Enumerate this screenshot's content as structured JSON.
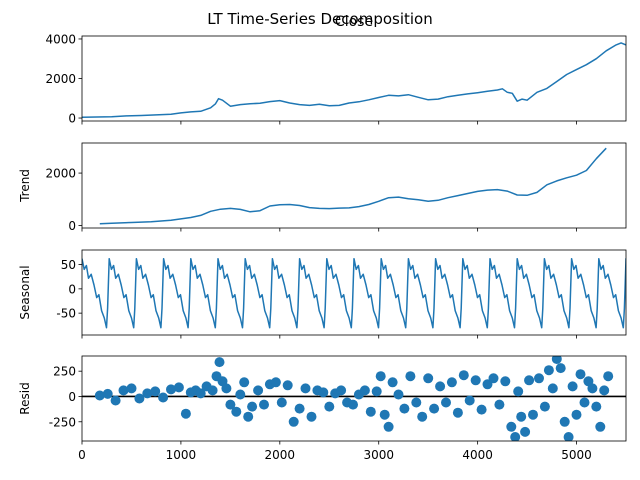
{
  "figure": {
    "title": "LT Time-Series Decomposition"
  },
  "chart_data": [
    {
      "type": "line",
      "title": "Close",
      "ylabel": "",
      "xlim": [
        0,
        5500
      ],
      "ylim": [
        -150,
        4150
      ],
      "yticks": [
        0,
        2000,
        4000
      ],
      "xticks": [
        0,
        1000,
        2000,
        3000,
        4000,
        5000
      ],
      "show_xtick_labels": false,
      "color": "#1f77b4",
      "series": [
        {
          "x": [
            0,
            150,
            300,
            450,
            600,
            750,
            900,
            1000,
            1100,
            1200,
            1300,
            1350,
            1380,
            1420,
            1500,
            1600,
            1700,
            1800,
            1900,
            2000,
            2100,
            2200,
            2300,
            2400,
            2500,
            2600,
            2700,
            2800,
            2900,
            3000,
            3100,
            3200,
            3300,
            3400,
            3500,
            3600,
            3700,
            3800,
            3900,
            4000,
            4100,
            4200,
            4250,
            4300,
            4350,
            4400,
            4450,
            4500,
            4600,
            4700,
            4800,
            4900,
            5000,
            5100,
            5200,
            5300,
            5400,
            5450,
            5500
          ],
          "y": [
            40,
            50,
            70,
            110,
            130,
            160,
            190,
            260,
            310,
            340,
            520,
            720,
            980,
            900,
            600,
            680,
            720,
            750,
            830,
            880,
            760,
            680,
            640,
            700,
            620,
            640,
            760,
            820,
            920,
            1040,
            1150,
            1120,
            1180,
            1050,
            920,
            960,
            1080,
            1150,
            1220,
            1280,
            1350,
            1420,
            1480,
            1300,
            1250,
            850,
            960,
            900,
            1300,
            1500,
            1850,
            2200,
            2450,
            2700,
            3000,
            3400,
            3700,
            3800,
            3700
          ]
        }
      ]
    },
    {
      "type": "line",
      "title": "",
      "ylabel": "Trend",
      "xlim": [
        0,
        5500
      ],
      "ylim": [
        -100,
        3150
      ],
      "yticks": [
        0,
        2000
      ],
      "xticks": [
        0,
        1000,
        2000,
        3000,
        4000,
        5000
      ],
      "show_xtick_labels": false,
      "color": "#1f77b4",
      "series": [
        {
          "x": [
            180,
            300,
            500,
            700,
            900,
            1100,
            1200,
            1300,
            1400,
            1500,
            1600,
            1700,
            1800,
            1900,
            2000,
            2100,
            2200,
            2300,
            2400,
            2500,
            2600,
            2700,
            2800,
            2900,
            3000,
            3100,
            3200,
            3300,
            3400,
            3500,
            3600,
            3700,
            3800,
            3900,
            4000,
            4100,
            4200,
            4300,
            4400,
            4500,
            4600,
            4700,
            4800,
            4900,
            5000,
            5100,
            5200,
            5300
          ],
          "y": [
            60,
            80,
            110,
            140,
            200,
            300,
            380,
            540,
            620,
            650,
            610,
            520,
            560,
            740,
            790,
            800,
            760,
            680,
            650,
            640,
            660,
            670,
            720,
            800,
            920,
            1060,
            1080,
            1020,
            980,
            920,
            960,
            1060,
            1140,
            1220,
            1300,
            1350,
            1370,
            1310,
            1160,
            1150,
            1260,
            1550,
            1700,
            1820,
            1920,
            2100,
            2550,
            2950
          ]
        }
      ]
    },
    {
      "type": "line",
      "title": "",
      "ylabel": "Seasonal",
      "xlim": [
        0,
        5500
      ],
      "ylim": [
        -95,
        80
      ],
      "yticks": [
        -50,
        0,
        50
      ],
      "xticks": [
        0,
        1000,
        2000,
        3000,
        4000,
        5000
      ],
      "show_xtick_labels": false,
      "color": "#1f77b4",
      "period": 275,
      "pattern": [
        {
          "t": 0.0,
          "v": 62
        },
        {
          "t": 0.08,
          "v": 40
        },
        {
          "t": 0.16,
          "v": 48
        },
        {
          "t": 0.24,
          "v": 22
        },
        {
          "t": 0.34,
          "v": 30
        },
        {
          "t": 0.44,
          "v": 8
        },
        {
          "t": 0.54,
          "v": -18
        },
        {
          "t": 0.62,
          "v": -12
        },
        {
          "t": 0.72,
          "v": -45
        },
        {
          "t": 0.82,
          "v": -60
        },
        {
          "t": 0.9,
          "v": -80
        },
        {
          "t": 0.94,
          "v": -40
        },
        {
          "t": 1.0,
          "v": 62
        }
      ]
    },
    {
      "type": "scatter",
      "title": "",
      "ylabel": "Resid",
      "xlim": [
        0,
        5500
      ],
      "ylim": [
        -440,
        400
      ],
      "yticks": [
        -250,
        0,
        250
      ],
      "xticks": [
        0,
        1000,
        2000,
        3000,
        4000,
        5000
      ],
      "xtick_labels": [
        "0",
        "1000",
        "2000",
        "3000",
        "4000",
        "5000"
      ],
      "show_xtick_labels": true,
      "baseline": 0,
      "color": "#1f77b4",
      "x": [
        180,
        260,
        340,
        420,
        500,
        580,
        660,
        740,
        820,
        900,
        980,
        1050,
        1100,
        1150,
        1200,
        1260,
        1320,
        1360,
        1390,
        1420,
        1460,
        1500,
        1560,
        1600,
        1640,
        1680,
        1720,
        1780,
        1840,
        1900,
        1960,
        2020,
        2080,
        2140,
        2200,
        2260,
        2320,
        2380,
        2440,
        2500,
        2560,
        2620,
        2680,
        2740,
        2800,
        2860,
        2920,
        2980,
        3020,
        3060,
        3100,
        3140,
        3200,
        3260,
        3320,
        3380,
        3440,
        3500,
        3560,
        3620,
        3680,
        3740,
        3800,
        3860,
        3920,
        3980,
        4040,
        4100,
        4160,
        4220,
        4280,
        4340,
        4380,
        4410,
        4440,
        4480,
        4520,
        4560,
        4620,
        4680,
        4720,
        4760,
        4800,
        4840,
        4880,
        4920,
        4960,
        5000,
        5040,
        5080,
        5120,
        5160,
        5200,
        5240,
        5280,
        5320
      ],
      "y": [
        10,
        25,
        -40,
        60,
        80,
        -20,
        30,
        50,
        -10,
        70,
        90,
        -170,
        40,
        60,
        30,
        100,
        60,
        200,
        340,
        150,
        80,
        -80,
        -150,
        20,
        140,
        -200,
        -100,
        60,
        -80,
        120,
        140,
        -60,
        110,
        -250,
        -120,
        80,
        -200,
        60,
        40,
        -100,
        30,
        60,
        -60,
        -80,
        20,
        60,
        -150,
        50,
        200,
        -180,
        -300,
        140,
        20,
        -120,
        200,
        -60,
        -200,
        180,
        -120,
        100,
        -60,
        140,
        -160,
        210,
        -40,
        160,
        -130,
        120,
        180,
        -80,
        150,
        -300,
        -400,
        50,
        -200,
        -350,
        160,
        -180,
        180,
        -100,
        260,
        80,
        370,
        280,
        -250,
        -400,
        100,
        -180,
        220,
        -60,
        150,
        80,
        -100,
        -300,
        60,
        200
      ]
    }
  ]
}
